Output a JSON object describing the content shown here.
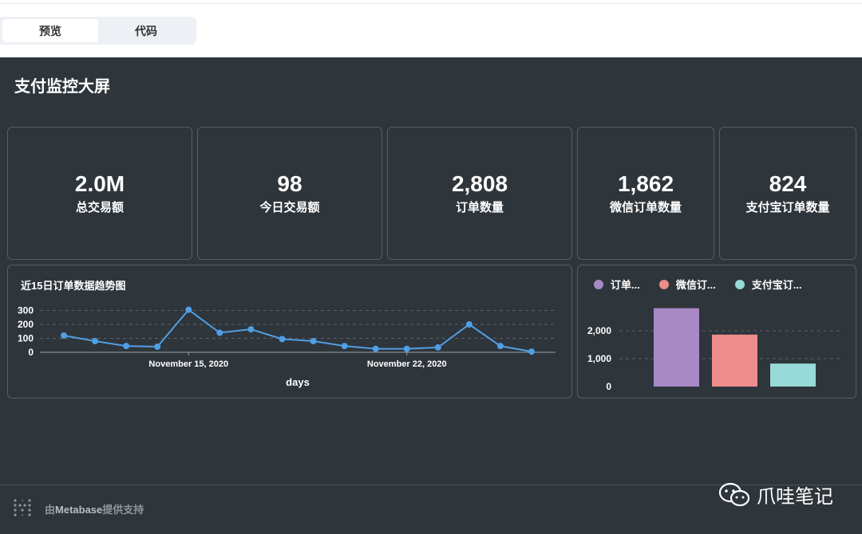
{
  "tabs": [
    {
      "label": "预览",
      "active": true
    },
    {
      "label": "代码",
      "active": false
    }
  ],
  "dashboard": {
    "title": "支付监控大屏"
  },
  "kpis": [
    {
      "value": "2.0M",
      "label": "总交易额"
    },
    {
      "value": "98",
      "label": "今日交易额"
    },
    {
      "value": "2,808",
      "label": "订单数量"
    },
    {
      "value": "1,862",
      "label": "微信订单数量"
    },
    {
      "value": "824",
      "label": "支付宝订单数量"
    }
  ],
  "chart_data": [
    {
      "type": "line",
      "title": "近15日订单数据趋势图",
      "xlabel": "days",
      "ylabel": "",
      "x": [
        "2020-11-11",
        "2020-11-12",
        "2020-11-13",
        "2020-11-14",
        "2020-11-15",
        "2020-11-16",
        "2020-11-17",
        "2020-11-18",
        "2020-11-19",
        "2020-11-20",
        "2020-11-21",
        "2020-11-22",
        "2020-11-23",
        "2020-11-24",
        "2020-11-25",
        "2020-11-26"
      ],
      "values": [
        120,
        80,
        45,
        40,
        305,
        140,
        165,
        95,
        80,
        45,
        25,
        25,
        35,
        200,
        45,
        5
      ],
      "x_tick_labels": [
        "November 15, 2020",
        "November 22, 2020"
      ],
      "y_ticks": [
        "300",
        "200",
        "100",
        "0"
      ],
      "ylim": [
        0,
        320
      ],
      "color": "#509ee3",
      "grid": true
    },
    {
      "type": "bar",
      "categories": [
        "订单...",
        "微信订...",
        "支付宝订..."
      ],
      "values": [
        2808,
        1862,
        824
      ],
      "colors": [
        "#a989c5",
        "#ef8c8c",
        "#98d9d9"
      ],
      "y_ticks": [
        "2,000",
        "1,000",
        "0"
      ],
      "ylim": [
        0,
        3000
      ],
      "legend": "top-left",
      "grid": true
    }
  ],
  "footer": {
    "prefix": "由",
    "brand": "Metabase",
    "suffix": "提供支持"
  },
  "watermark": {
    "text": "爪哇笔记"
  }
}
